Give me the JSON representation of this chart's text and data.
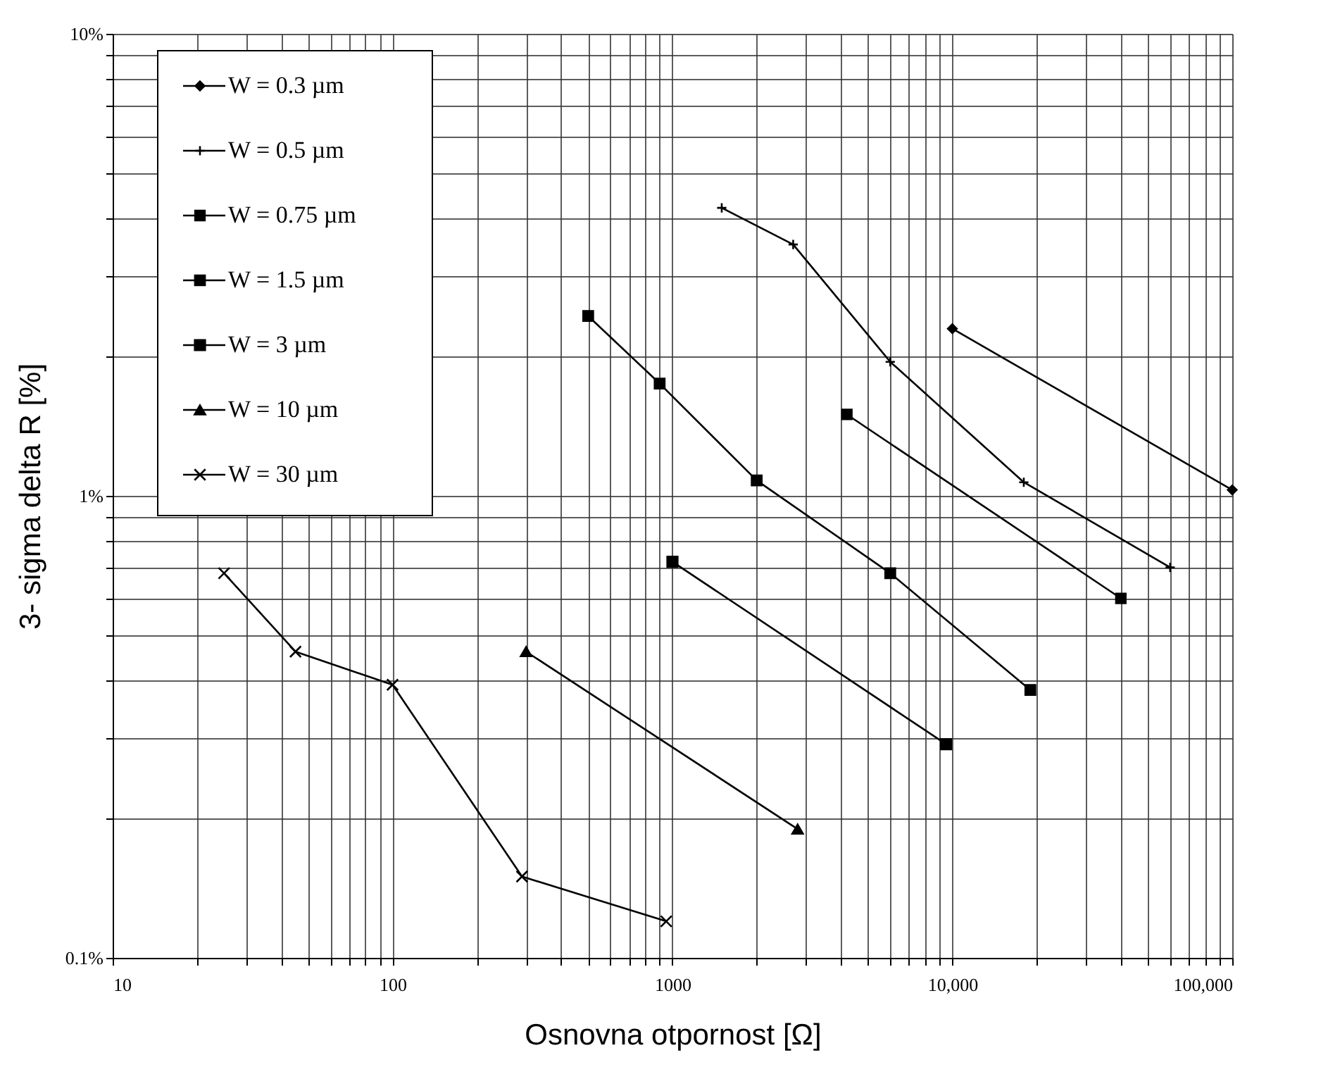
{
  "chart_data": {
    "type": "line",
    "xlabel": "Osnovna otpornost [Ω]",
    "ylabel": "3- sigma delta R [%]",
    "log": "xy",
    "grid": true,
    "legend": "top left",
    "line_style": "solid",
    "xlim": [
      10,
      100000
    ],
    "ylim": [
      0.1,
      10
    ],
    "xticks": [
      10,
      {
        "value": 20,
        "label": null
      },
      {
        "value": 30,
        "label": null
      },
      {
        "value": 40,
        "label": null
      },
      {
        "value": 50,
        "label": null
      },
      {
        "value": 60,
        "label": null
      },
      {
        "value": 70,
        "label": null
      },
      {
        "value": 80,
        "label": null
      },
      {
        "value": 90,
        "label": null
      },
      100,
      {
        "value": 200,
        "label": null
      },
      {
        "value": 300,
        "label": null
      },
      {
        "value": 400,
        "label": null
      },
      {
        "value": 500,
        "label": null
      },
      {
        "value": 600,
        "label": null
      },
      {
        "value": 700,
        "label": null
      },
      {
        "value": 800,
        "label": null
      },
      {
        "value": 900,
        "label": null
      },
      1000,
      {
        "value": 2000,
        "label": null
      },
      {
        "value": 3000,
        "label": null
      },
      {
        "value": 4000,
        "label": null
      },
      {
        "value": 5000,
        "label": null
      },
      {
        "value": 6000,
        "label": null
      },
      {
        "value": 7000,
        "label": null
      },
      {
        "value": 8000,
        "label": null
      },
      {
        "value": 9000,
        "label": null
      },
      {
        "value": 10000,
        "label": "10,000"
      },
      {
        "value": 20000,
        "label": null
      },
      {
        "value": 30000,
        "label": null
      },
      {
        "value": 40000,
        "label": null
      },
      {
        "value": 50000,
        "label": null
      },
      {
        "value": 60000,
        "label": null
      },
      {
        "value": 70000,
        "label": null
      },
      {
        "value": 80000,
        "label": null
      },
      {
        "value": 90000,
        "label": null
      },
      {
        "value": 100000,
        "label": "100,000"
      }
    ],
    "yticks": [
      {
        "value": 0.1,
        "label": "0.1%"
      },
      {
        "value": 0.2,
        "label": null
      },
      {
        "value": 0.3,
        "label": null
      },
      {
        "value": 0.4,
        "label": null
      },
      {
        "value": 0.5,
        "label": null
      },
      {
        "value": 0.6,
        "label": null
      },
      {
        "value": 0.7,
        "label": null
      },
      {
        "value": 0.8,
        "label": null
      },
      {
        "value": 0.9,
        "label": null
      },
      {
        "value": 1,
        "label": "1%"
      },
      {
        "value": 2,
        "label": null
      },
      {
        "value": 3,
        "label": null
      },
      {
        "value": 4,
        "label": null
      },
      {
        "value": 5,
        "label": null
      },
      {
        "value": 6,
        "label": null
      },
      {
        "value": 7,
        "label": null
      },
      {
        "value": 8,
        "label": null
      },
      {
        "value": 9,
        "label": null
      },
      {
        "value": 10,
        "label": "10%"
      }
    ],
    "series": [
      {
        "name": "W = 0.3 µm",
        "color": "#000000",
        "marker": "diamond",
        "x": [
          10000,
          100000
        ],
        "values": [
          2.3,
          1.03
        ]
      },
      {
        "name": "W = 0.5 µm",
        "color": "#000000",
        "marker": "cross",
        "x": [
          1500,
          2700,
          6000,
          18000,
          60000
        ],
        "values": [
          4.2,
          3.5,
          1.95,
          1.07,
          0.7
        ]
      },
      {
        "name": "W = 0.75 µm",
        "color": "#000000",
        "marker": "square",
        "x": [
          4200,
          40000
        ],
        "values": [
          1.5,
          0.6
        ]
      },
      {
        "name": "W = 1.5 µm",
        "color": "#000000",
        "marker": "square",
        "x": [
          500,
          900,
          2000,
          6000,
          19000
        ],
        "values": [
          2.45,
          1.75,
          1.08,
          0.68,
          0.38
        ]
      },
      {
        "name": "W = 3 µm",
        "color": "#000000",
        "marker": "square",
        "x": [
          1000,
          9500
        ],
        "values": [
          0.72,
          0.29
        ]
      },
      {
        "name": "W = 10 µm",
        "color": "#000000",
        "marker": "triangle",
        "x": [
          300,
          2800
        ],
        "values": [
          0.46,
          0.19
        ]
      },
      {
        "name": "W = 30 µm",
        "color": "#000000",
        "marker": "x",
        "x": [
          25,
          45,
          100,
          290,
          950
        ],
        "values": [
          0.68,
          0.46,
          0.39,
          0.15,
          0.12
        ]
      }
    ]
  }
}
